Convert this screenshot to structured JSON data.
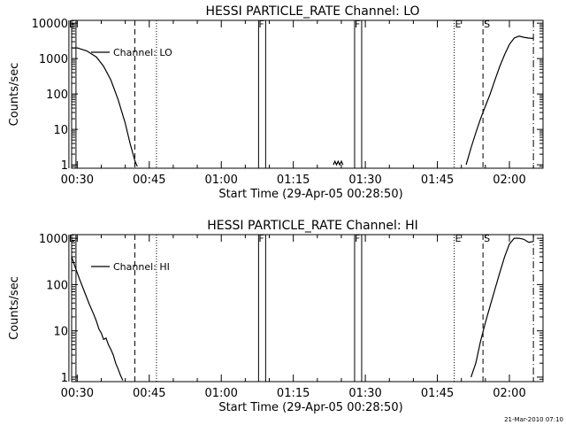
{
  "chart_data": [
    {
      "type": "line",
      "title": "HESSI PARTICLE_RATE Channel: LO",
      "xlabel": "Start Time (29-Apr-05 00:28:50)",
      "ylabel": "Counts/sec",
      "yscale": "log",
      "ylim": [
        0.8,
        12000
      ],
      "xlim": [
        "00:28:50",
        "02:07:00"
      ],
      "x_ticks": [
        "00:30",
        "00:45",
        "01:00",
        "01:15",
        "01:30",
        "01:45",
        "02:00"
      ],
      "y_ticks": [
        "1",
        "10",
        "100",
        "1000",
        "10000"
      ],
      "legend": {
        "label": "Channel: LO",
        "placement": "top-left"
      },
      "series": [
        {
          "name": "Channel: LO",
          "segments": [
            {
              "x": [
                "00:28:50",
                "00:30:00",
                "00:32:00",
                "00:34:00",
                "00:35:30",
                "00:37:00",
                "00:38:30",
                "00:40:00",
                "00:41:00",
                "00:42:00",
                "00:42:30"
              ],
              "y": [
                2000,
                2000,
                1650,
                1100,
                600,
                250,
                70,
                15,
                4,
                1.3,
                0.9
              ]
            },
            {
              "x": [
                "01:23:20",
                "01:23:40",
                "01:24:00",
                "01:24:20",
                "01:24:40",
                "01:25:00",
                "01:25:20"
              ],
              "y": [
                1,
                1.25,
                1,
                1.25,
                1,
                1.25,
                1
              ]
            },
            {
              "x": [
                "01:51:00",
                "01:52:00",
                "01:53:00",
                "01:54:00",
                "01:55:00",
                "01:56:00",
                "01:57:00",
                "01:58:00",
                "01:59:00",
                "02:00:00",
                "02:01:00",
                "02:02:00",
                "02:03:00",
                "02:04:00",
                "02:05:00"
              ],
              "y": [
                1,
                3,
                8,
                20,
                45,
                100,
                250,
                600,
                1300,
                2500,
                3800,
                4300,
                4000,
                3800,
                3700
              ]
            }
          ]
        }
      ],
      "markers": [
        {
          "label": "E",
          "time": "00:29:00",
          "style": "solid-bar"
        },
        {
          "label": "",
          "time": "00:42:00",
          "style": "dashed"
        },
        {
          "label": "",
          "time": "00:46:30",
          "style": "dotted"
        },
        {
          "label": "F",
          "time": "01:08:30",
          "style": "solid-bar"
        },
        {
          "label": "F",
          "time": "01:28:30",
          "style": "solid-bar"
        },
        {
          "label": "E",
          "time": "01:48:30",
          "style": "dotted"
        },
        {
          "label": "S",
          "time": "01:54:30",
          "style": "dashed"
        },
        {
          "label": "",
          "time": "02:05:00",
          "style": "dash-dot"
        }
      ]
    },
    {
      "type": "line",
      "title": "HESSI PARTICLE_RATE Channel: HI",
      "xlabel": "Start Time (29-Apr-05 00:28:50)",
      "ylabel": "Counts/sec",
      "yscale": "log",
      "ylim": [
        0.8,
        1200
      ],
      "xlim": [
        "00:28:50",
        "02:07:00"
      ],
      "x_ticks": [
        "00:30",
        "00:45",
        "01:00",
        "01:15",
        "01:30",
        "01:45",
        "02:00"
      ],
      "y_ticks": [
        "1",
        "10",
        "100",
        "1000"
      ],
      "legend": {
        "label": "Channel: HI",
        "placement": "top-left"
      },
      "series": [
        {
          "name": "Channel: HI",
          "segments": [
            {
              "x": [
                "00:28:50",
                "00:29:30",
                "00:30:30",
                "00:31:30",
                "00:32:30",
                "00:33:30",
                "00:34:00",
                "00:34:30",
                "00:35:00",
                "00:35:30",
                "00:36:00",
                "00:36:30",
                "00:37:00",
                "00:37:30",
                "00:38:00",
                "00:38:30",
                "00:39:00",
                "00:39:30"
              ],
              "y": [
                400,
                250,
                130,
                70,
                38,
                22,
                16,
                11,
                9,
                6.5,
                7,
                5,
                4,
                3,
                2,
                1.5,
                1.1,
                0.85
              ]
            },
            {
              "x": [
                "01:52:00",
                "01:53:00",
                "01:54:00",
                "01:55:00",
                "01:56:00",
                "01:57:00",
                "01:58:00",
                "01:59:00",
                "02:00:00",
                "02:01:00",
                "02:02:00",
                "02:03:00",
                "02:04:00",
                "02:05:00"
              ],
              "y": [
                1,
                2,
                6,
                15,
                35,
                80,
                180,
                400,
                750,
                1000,
                1000,
                950,
                820,
                850
              ]
            }
          ]
        }
      ],
      "markers": [
        {
          "label": "E",
          "time": "00:29:00",
          "style": "solid-bar"
        },
        {
          "label": "",
          "time": "00:42:00",
          "style": "dashed"
        },
        {
          "label": "",
          "time": "00:46:30",
          "style": "dotted"
        },
        {
          "label": "F",
          "time": "01:08:30",
          "style": "solid-bar"
        },
        {
          "label": "F",
          "time": "01:28:30",
          "style": "solid-bar"
        },
        {
          "label": "E",
          "time": "01:48:30",
          "style": "dotted"
        },
        {
          "label": "S",
          "time": "01:54:30",
          "style": "dashed"
        },
        {
          "label": "",
          "time": "02:05:00",
          "style": "dash-dot"
        }
      ]
    }
  ],
  "footer": {
    "timestamp": "21-Mar-2010 07:10"
  }
}
